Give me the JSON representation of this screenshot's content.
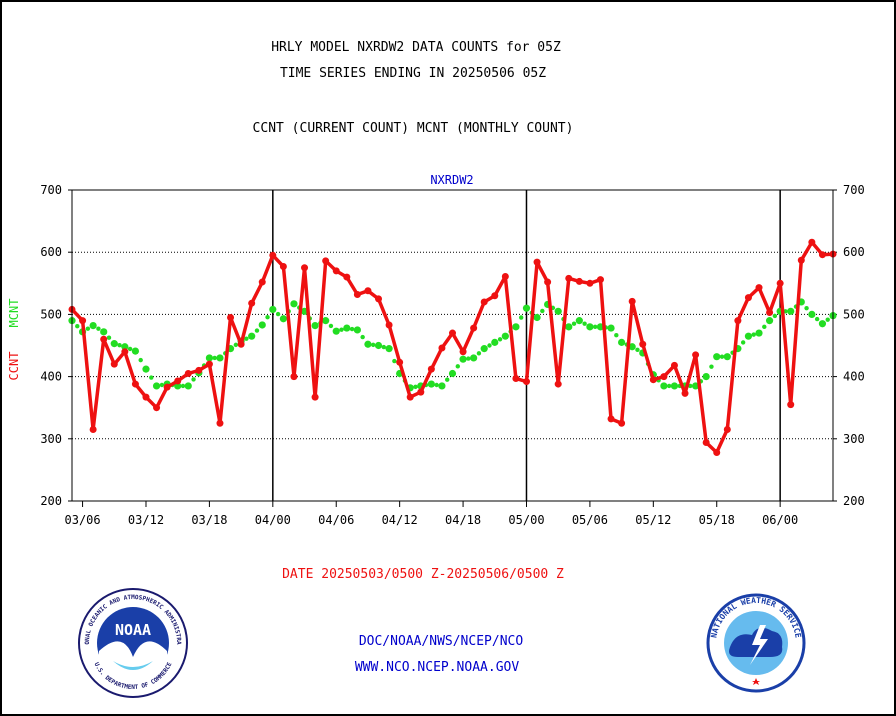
{
  "header": {
    "title_line1": "HRLY MODEL NXRDW2 DATA COUNTS for 05Z",
    "title_line2": "TIME SERIES ENDING IN 20250506 05Z",
    "subtitle": "CCNT (CURRENT COUNT) MCNT (MONTHLY COUNT)"
  },
  "footer": {
    "date_range": "DATE 20250503/0500 Z-20250506/0500 Z",
    "org_line": "DOC/NOAA/NWS/NCEP/NCO",
    "url_line": "WWW.NCO.NCEP.NOAA.GOV"
  },
  "logos": {
    "noaa_text": "NOAA",
    "noaa_ring_text": "NATIONAL OCEANIC AND ATMOSPHERIC ADMINISTRATION",
    "noaa_ring_bottom": "U.S. DEPARTMENT OF COMMERCE",
    "nws_ring_text": "NATIONAL WEATHER SERVICE"
  },
  "colors": {
    "ccnt": "#ee1111",
    "mcnt": "#22dd22",
    "chart_label": "#0000cc",
    "frame": "#000000"
  },
  "chart_data": {
    "type": "line",
    "title": "NXRDW2",
    "ylabel_ccnt": "CCNT",
    "ylabel_mcnt": "MCNT",
    "ylim": [
      200,
      700
    ],
    "yticks": [
      200,
      300,
      400,
      500,
      600,
      700
    ],
    "xticks": [
      "03/06",
      "03/12",
      "03/18",
      "04/00",
      "04/06",
      "04/12",
      "04/18",
      "05/00",
      "05/06",
      "05/12",
      "05/18",
      "06/00"
    ],
    "day_boundaries": [
      "04/00",
      "05/00",
      "06/00"
    ],
    "grid": "horizontal-dotted",
    "x_start": "03/05",
    "x_end": "06/05",
    "series": [
      {
        "name": "CCNT",
        "x": [
          "03/05",
          "03/06",
          "03/07",
          "03/08",
          "03/09",
          "03/10",
          "03/11",
          "03/12",
          "03/13",
          "03/14",
          "03/15",
          "03/16",
          "03/17",
          "03/18",
          "03/19",
          "03/20",
          "03/21",
          "03/22",
          "03/23",
          "04/00",
          "04/01",
          "04/02",
          "04/03",
          "04/04",
          "04/05",
          "04/06",
          "04/07",
          "04/08",
          "04/09",
          "04/10",
          "04/11",
          "04/12",
          "04/13",
          "04/14",
          "04/15",
          "04/16",
          "04/17",
          "04/18",
          "04/19",
          "04/20",
          "04/21",
          "04/22",
          "04/23",
          "05/00",
          "05/01",
          "05/02",
          "05/03",
          "05/04",
          "05/05",
          "05/06",
          "05/07",
          "05/08",
          "05/09",
          "05/10",
          "05/11",
          "05/12",
          "05/13",
          "05/14",
          "05/15",
          "05/16",
          "05/17",
          "05/18",
          "05/19",
          "05/20",
          "05/21",
          "05/22",
          "05/23",
          "06/00",
          "06/01",
          "06/02",
          "06/03",
          "06/04",
          "06/05"
        ],
        "values": [
          508,
          490,
          315,
          460,
          420,
          440,
          388,
          367,
          350,
          383,
          393,
          405,
          410,
          420,
          325,
          495,
          452,
          518,
          552,
          595,
          577,
          400,
          575,
          367,
          586,
          570,
          560,
          532,
          538,
          525,
          483,
          423,
          367,
          375,
          412,
          446,
          470,
          440,
          478,
          520,
          530,
          561,
          397,
          392,
          584,
          552,
          388,
          558,
          553,
          550,
          556,
          332,
          325,
          521,
          452,
          395,
          400,
          418,
          373,
          435,
          294,
          278,
          315,
          490,
          527,
          543,
          503,
          550,
          355,
          587,
          616,
          596,
          597
        ]
      },
      {
        "name": "MCNT",
        "x": [
          "03/05",
          "03/06",
          "03/07",
          "03/08",
          "03/09",
          "03/10",
          "03/11",
          "03/12",
          "03/13",
          "03/14",
          "03/15",
          "03/16",
          "03/17",
          "03/18",
          "03/19",
          "03/20",
          "03/21",
          "03/22",
          "03/23",
          "04/00",
          "04/01",
          "04/02",
          "04/03",
          "04/04",
          "04/05",
          "04/06",
          "04/07",
          "04/08",
          "04/09",
          "04/10",
          "04/11",
          "04/12",
          "04/13",
          "04/14",
          "04/15",
          "04/16",
          "04/17",
          "04/18",
          "04/19",
          "04/20",
          "04/21",
          "04/22",
          "04/23",
          "05/00",
          "05/01",
          "05/02",
          "05/03",
          "05/04",
          "05/05",
          "05/06",
          "05/07",
          "05/08",
          "05/09",
          "05/10",
          "05/11",
          "05/12",
          "05/13",
          "05/14",
          "05/15",
          "05/16",
          "05/17",
          "05/18",
          "05/19",
          "05/20",
          "05/21",
          "05/22",
          "05/23",
          "06/00",
          "06/01",
          "06/02",
          "06/03",
          "06/04",
          "06/05"
        ],
        "values": [
          490,
          472,
          482,
          472,
          453,
          448,
          441,
          412,
          385,
          388,
          385,
          385,
          406,
          430,
          430,
          445,
          457,
          465,
          483,
          508,
          493,
          517,
          505,
          482,
          490,
          473,
          478,
          475,
          452,
          450,
          445,
          405,
          382,
          385,
          388,
          385,
          405,
          428,
          430,
          445,
          455,
          465,
          480,
          510,
          495,
          516,
          505,
          480,
          490,
          480,
          480,
          478,
          455,
          448,
          438,
          403,
          385,
          385,
          385,
          385,
          400,
          432,
          432,
          445,
          465,
          470,
          490,
          505,
          505,
          520,
          500,
          485,
          498
        ]
      }
    ]
  }
}
